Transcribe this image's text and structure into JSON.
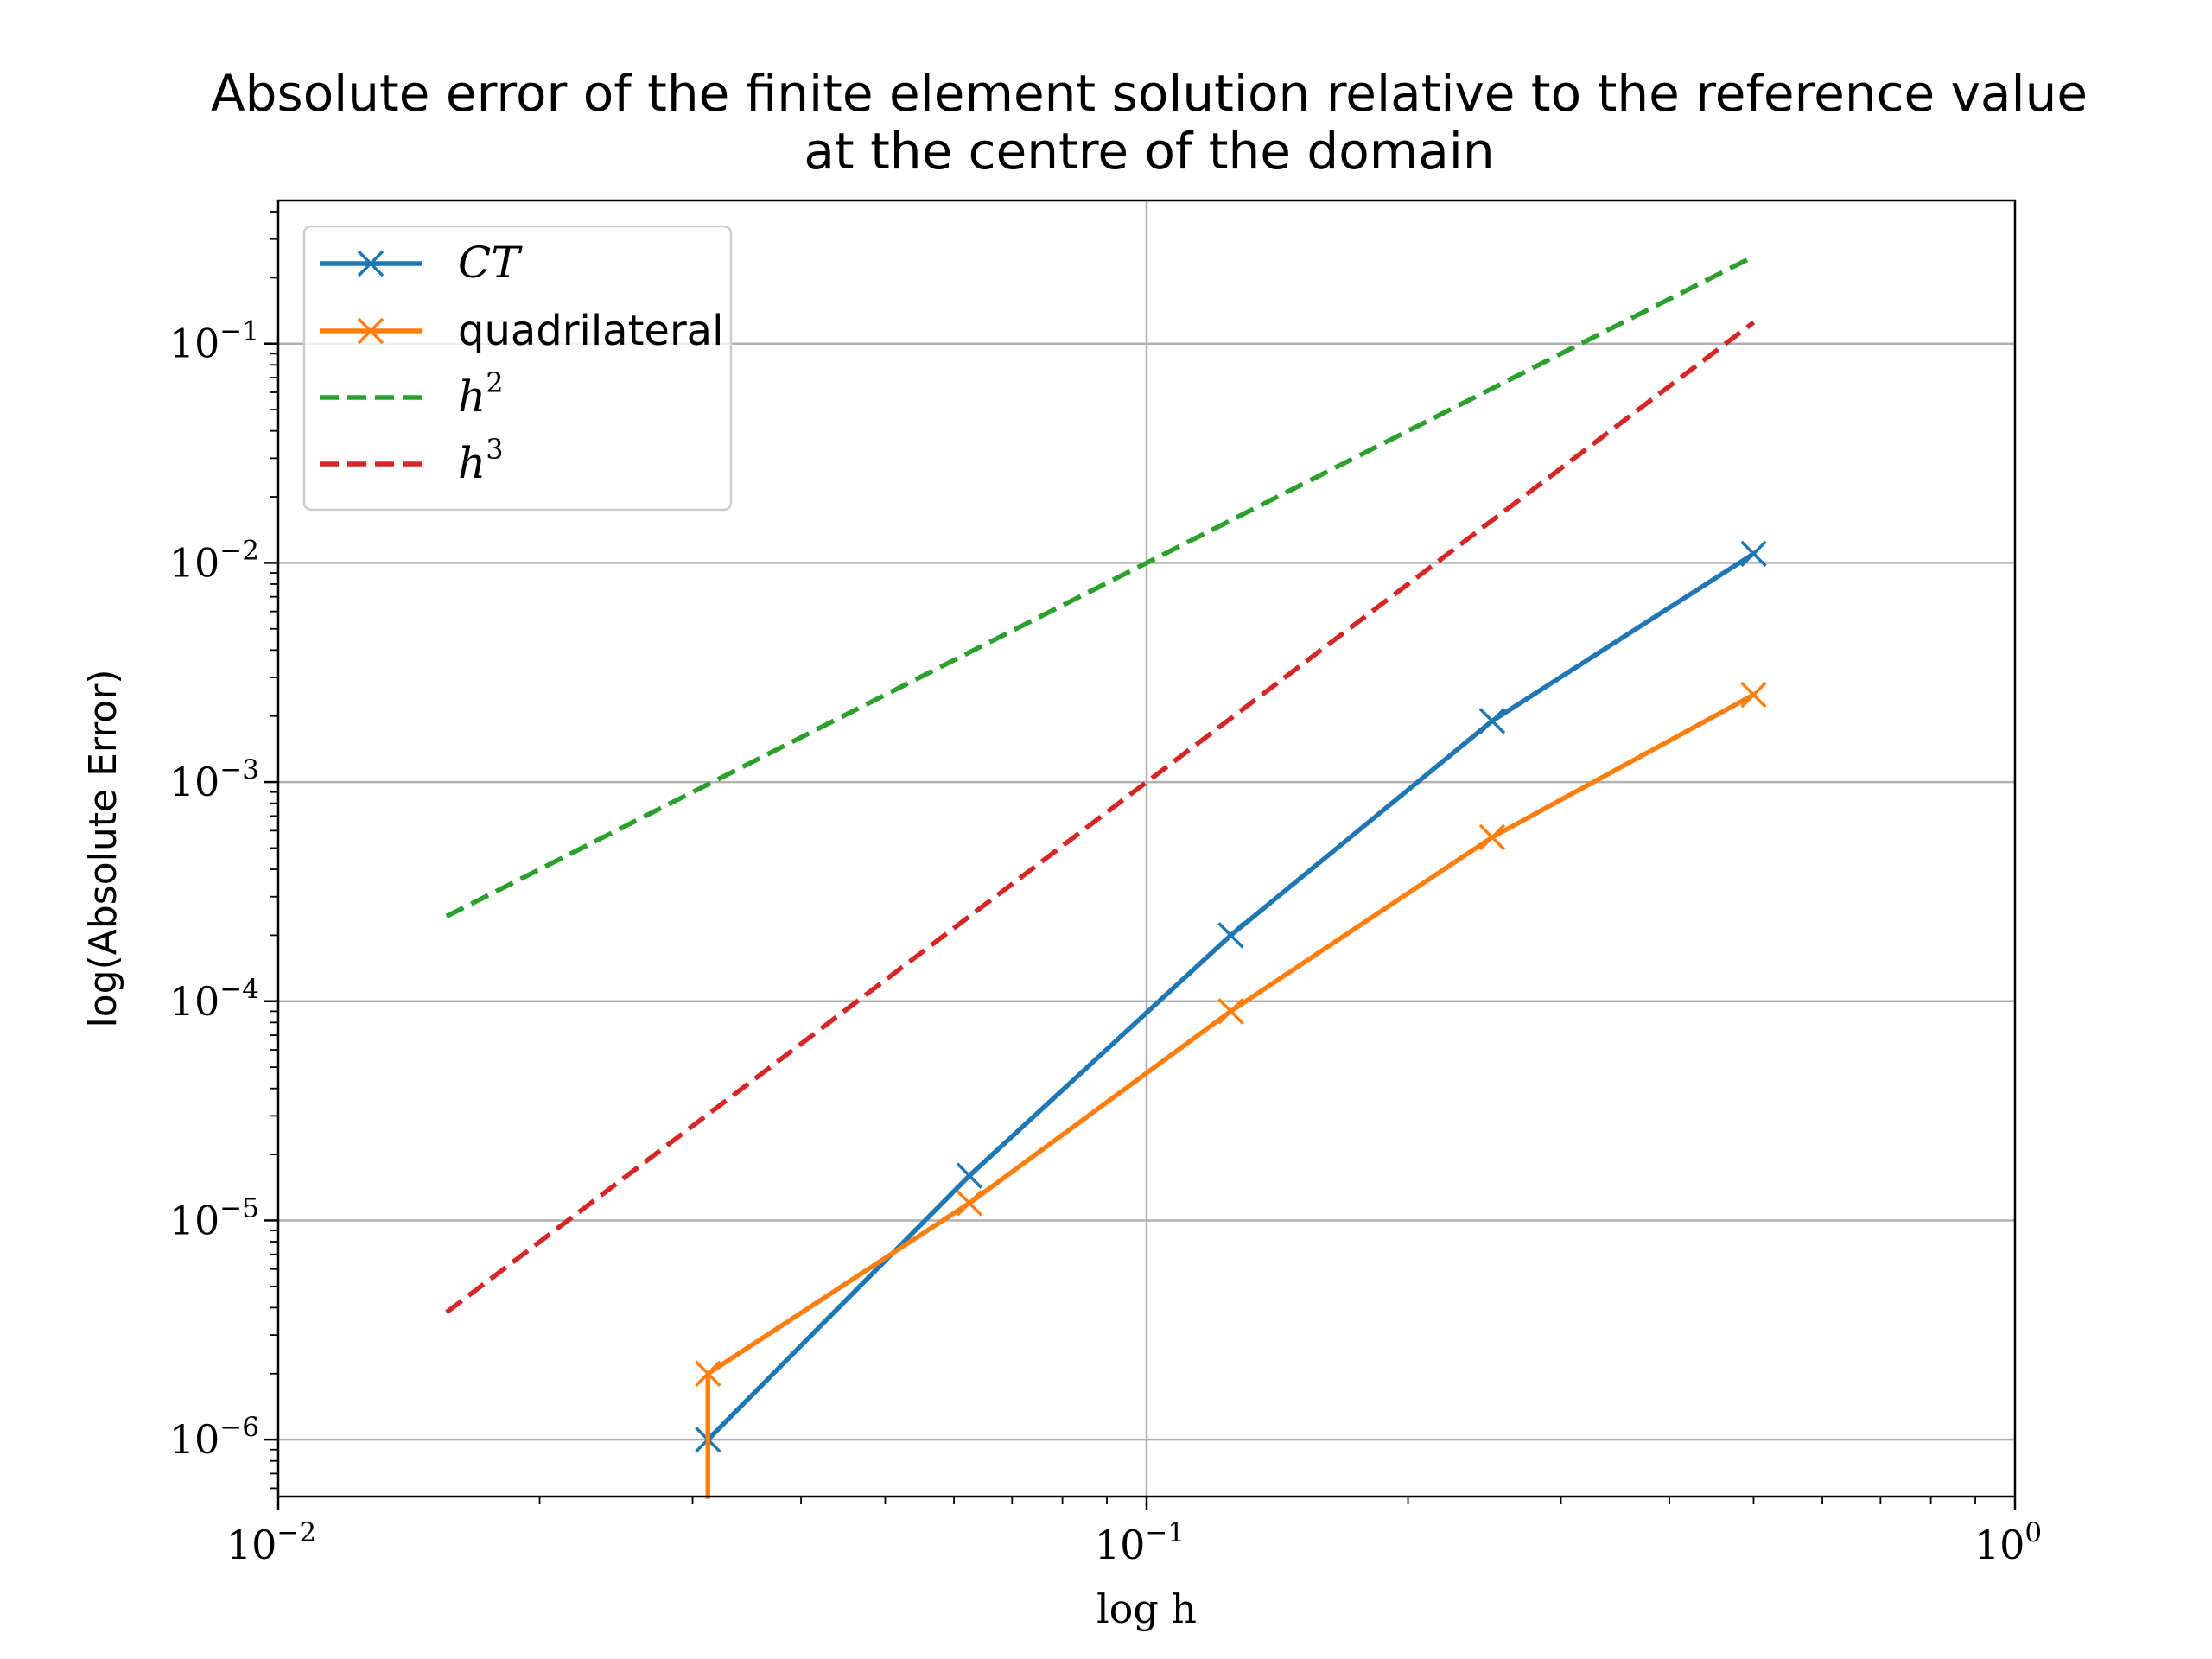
{
  "chart_data": {
    "type": "line",
    "title_lines": [
      "Absolute error of the finite element solution relative to the reference value",
      "at the centre of the domain"
    ],
    "xlabel": "log h",
    "ylabel": "log(Absolute Error)",
    "xscale": "log",
    "yscale": "log",
    "xlim": [
      0.01,
      1
    ],
    "ylim": [
      5.5e-07,
      0.45
    ],
    "x_ticks": [
      {
        "value": 0.01,
        "base": "10",
        "exp": "−2"
      },
      {
        "value": 0.1,
        "base": "10",
        "exp": "−1"
      },
      {
        "value": 1,
        "base": "10",
        "exp": "0"
      }
    ],
    "y_ticks": [
      {
        "value": 1e-06,
        "base": "10",
        "exp": "−6"
      },
      {
        "value": 1e-05,
        "base": "10",
        "exp": "−5"
      },
      {
        "value": 0.0001,
        "base": "10",
        "exp": "−4"
      },
      {
        "value": 0.001,
        "base": "10",
        "exp": "−3"
      },
      {
        "value": 0.01,
        "base": "10",
        "exp": "−2"
      },
      {
        "value": 0.1,
        "base": "10",
        "exp": "−1"
      }
    ],
    "grid": true,
    "legend_position": "top-left",
    "series": [
      {
        "name": "CT",
        "name_style": "math",
        "color": "#1f77b4",
        "dash": "solid",
        "marker": "x",
        "x": [
          0.03125,
          0.0625,
          0.125,
          0.25,
          0.5
        ],
        "y": [
          1e-06,
          1.6e-05,
          0.0002,
          0.0019,
          0.011
        ]
      },
      {
        "name": "quadrilateral",
        "name_style": "text",
        "color": "#ff7f0e",
        "dash": "solid",
        "marker": "x",
        "x": [
          0.03125,
          0.03125,
          0.0625,
          0.125,
          0.25,
          0.5
        ],
        "y": [
          5.5e-07,
          2e-06,
          1.2e-05,
          9e-05,
          0.00056,
          0.0025
        ],
        "marker_indices": [
          1,
          2,
          3,
          4,
          5
        ]
      },
      {
        "name": "h",
        "name_sup": "2",
        "name_style": "math",
        "color": "#2ca02c",
        "dash": "dashed",
        "marker": "none",
        "x": [
          0.015625,
          0.5
        ],
        "y": [
          0.000244,
          0.25
        ]
      },
      {
        "name": "h",
        "name_sup": "3",
        "name_style": "math",
        "color": "#d62728",
        "dash": "dashed",
        "marker": "none",
        "x": [
          0.015625,
          0.5
        ],
        "y": [
          3.81e-06,
          0.125
        ]
      }
    ]
  }
}
